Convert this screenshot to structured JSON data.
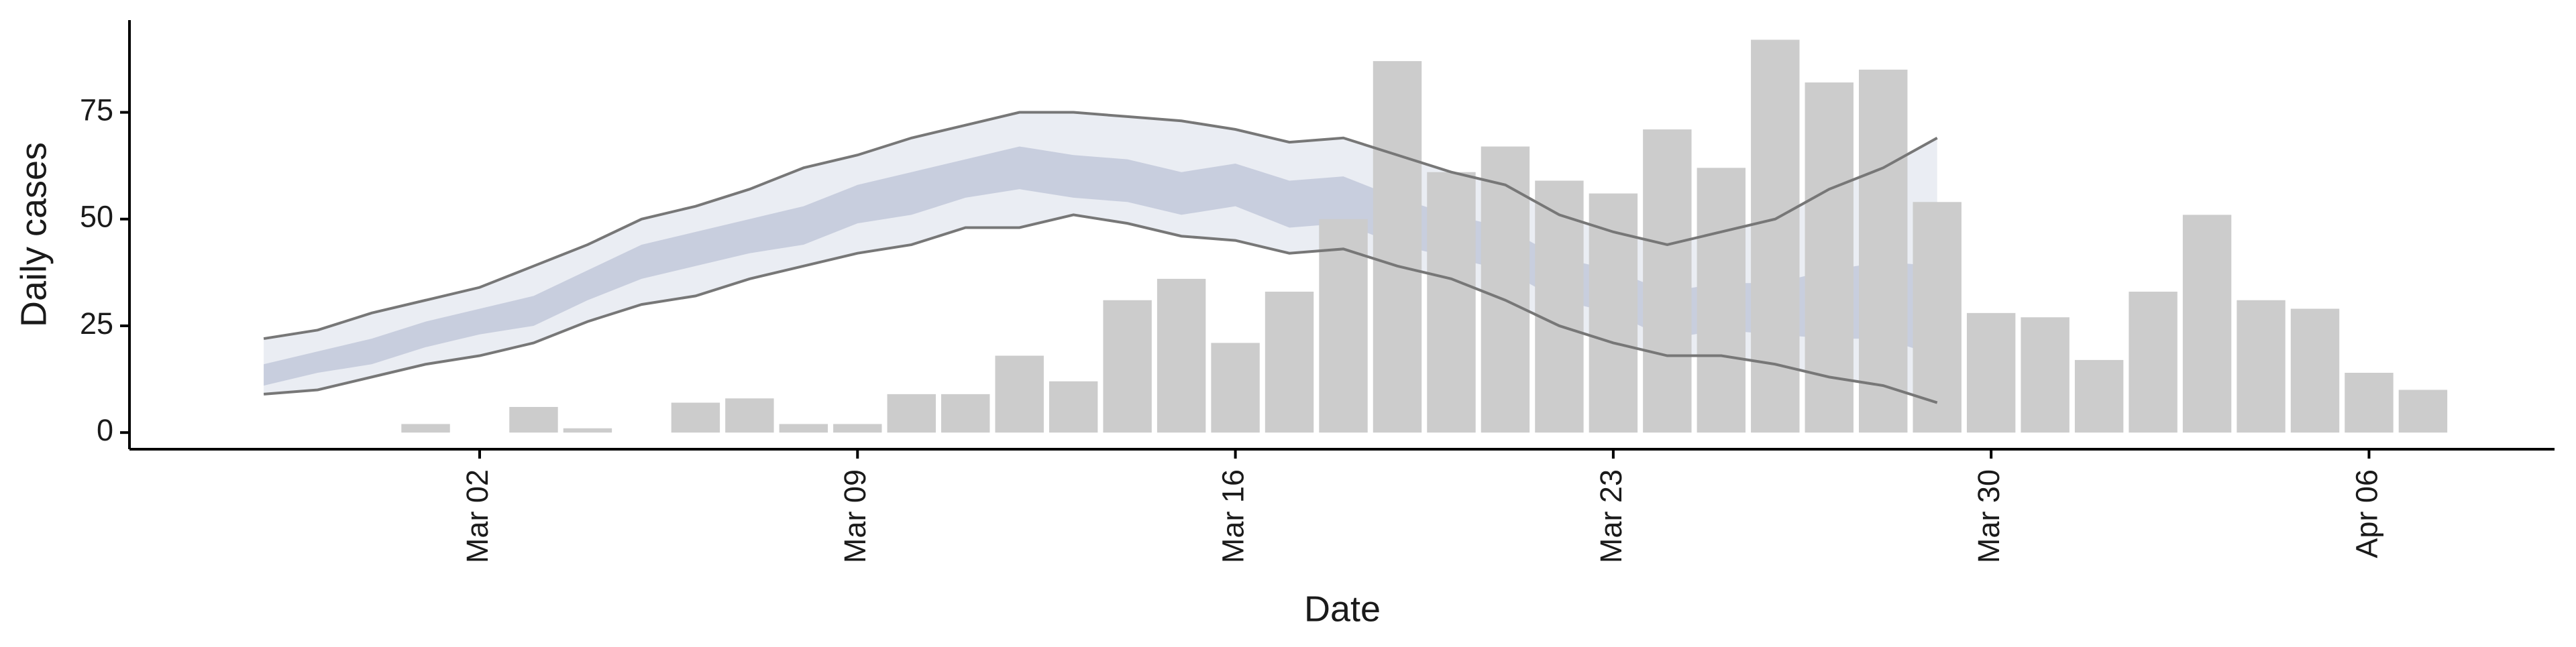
{
  "chart_data": {
    "type": "bar",
    "x_label": "Date",
    "y_label": "Daily cases",
    "categories": [
      null,
      null,
      null,
      null,
      "Mar 02",
      null,
      null,
      null,
      null,
      null,
      null,
      "Mar 09",
      null,
      null,
      null,
      null,
      null,
      null,
      "Mar 16",
      null,
      null,
      null,
      null,
      null,
      null,
      "Mar 23",
      null,
      null,
      null,
      null,
      null,
      null,
      "Mar 30",
      null,
      null,
      null,
      null,
      null,
      null,
      "Apr 06",
      null
    ],
    "values": [
      0,
      0,
      0,
      2,
      0,
      6,
      1,
      0,
      7,
      8,
      2,
      2,
      9,
      9,
      18,
      12,
      31,
      36,
      21,
      33,
      50,
      87,
      61,
      67,
      59,
      56,
      71,
      62,
      92,
      82,
      85,
      54,
      28,
      27,
      17,
      33,
      51,
      31,
      29,
      14,
      10
    ],
    "color": "#cccccc",
    "bands": [
      {
        "color": "#e8ebf2",
        "line_color": "#777777",
        "upper": [
          22,
          24,
          28,
          31,
          34,
          39,
          44,
          50,
          53,
          57,
          62,
          65,
          69,
          72,
          75,
          75,
          74,
          73,
          71,
          68,
          69,
          65,
          61,
          58,
          51,
          47,
          44,
          47,
          50,
          57,
          62,
          69,
          null,
          null,
          null,
          null,
          null,
          null,
          null,
          null,
          null
        ],
        "lower": [
          9,
          10,
          13,
          16,
          18,
          21,
          26,
          30,
          32,
          36,
          39,
          42,
          44,
          48,
          48,
          51,
          49,
          46,
          45,
          42,
          43,
          39,
          36,
          31,
          25,
          21,
          18,
          18,
          16,
          13,
          11,
          7,
          null,
          null,
          null,
          null,
          null,
          null,
          null,
          null,
          null
        ]
      },
      {
        "color": "#c4cadc",
        "line_color": null,
        "upper": [
          16,
          19,
          22,
          26,
          29,
          32,
          38,
          44,
          47,
          50,
          53,
          58,
          61,
          64,
          67,
          65,
          64,
          61,
          63,
          59,
          60,
          55,
          51,
          48,
          41,
          38,
          33,
          35,
          35,
          38,
          40,
          39,
          null,
          null,
          null,
          null,
          null,
          null,
          null,
          null,
          null
        ],
        "lower": [
          11,
          14,
          16,
          20,
          23,
          25,
          31,
          36,
          39,
          42,
          44,
          49,
          51,
          55,
          57,
          55,
          54,
          51,
          53,
          48,
          49,
          44,
          41,
          38,
          31,
          28,
          22,
          24,
          23,
          22,
          22,
          18,
          null,
          null,
          null,
          null,
          null,
          null,
          null,
          null,
          null
        ]
      }
    ],
    "ylim": [
      -3.9,
      96.6
    ],
    "yticks": [
      0,
      25,
      50,
      75
    ],
    "grid": false
  }
}
